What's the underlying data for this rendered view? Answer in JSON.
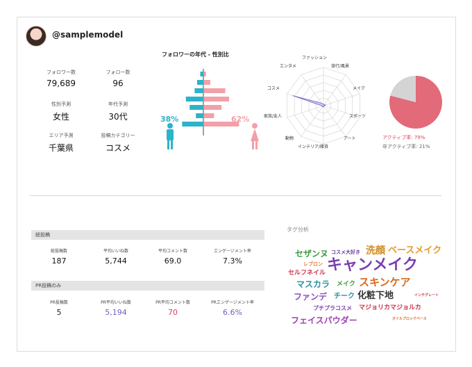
{
  "profile": {
    "username": "@samplemodel"
  },
  "stats": [
    {
      "label": "フォロワー数",
      "value": "79,689"
    },
    {
      "label": "フォロー数",
      "value": "96"
    },
    {
      "label": "性別予測",
      "value": "女性"
    },
    {
      "label": "年代予測",
      "value": "30代"
    },
    {
      "label": "エリア予測",
      "value": "千葉県"
    },
    {
      "label": "投稿カテゴリー",
      "value": "コスメ"
    }
  ],
  "age_gender": {
    "title": "フォロワーの年代 - 性別比",
    "male_pct": "38%",
    "female_pct": "62%",
    "colors": {
      "male": "#2bb3c9",
      "female": "#f2a0a8"
    }
  },
  "radar": {
    "labels": [
      "ファッション",
      "旅行/風景",
      "メイク",
      "スポーツ",
      "アート",
      "インテリア/雑貨",
      "動物",
      "家族/友人",
      "コスメ",
      "エンタメ"
    ]
  },
  "pie": {
    "active_label": "アクティブ率: 79%",
    "inactive_label": "非アクティブ率: 21%",
    "colors": {
      "active": "#e26a79",
      "inactive": "#d4d4d4"
    }
  },
  "chart_data": [
    {
      "type": "bar",
      "title": "フォロワーの年代 - 性別比",
      "series": [
        {
          "name": "男性",
          "values": [
            5,
            10,
            14,
            28,
            22,
            12,
            34
          ]
        },
        {
          "name": "女性",
          "values": [
            3,
            10,
            34,
            40,
            28,
            16,
            56
          ]
        }
      ],
      "legend": [
        "38%",
        "62%"
      ]
    },
    {
      "type": "radar",
      "categories": [
        "ファッション",
        "旅行/風景",
        "メイク",
        "スポーツ",
        "アート",
        "インテリア/雑貨",
        "動物",
        "家族/友人",
        "コスメ",
        "エンタメ"
      ],
      "values": [
        4,
        3,
        6,
        2,
        2,
        3,
        4,
        3,
        85,
        8
      ],
      "max": 100
    },
    {
      "type": "pie",
      "categories": [
        "アクティブ率",
        "非アクティブ率"
      ],
      "values": [
        79,
        21
      ]
    }
  ],
  "all_posts": {
    "header": "総投稿",
    "items": [
      {
        "label": "総投稿数",
        "value": "187"
      },
      {
        "label": "平均いいね数",
        "value": "5,744"
      },
      {
        "label": "平均コメント数",
        "value": "69.0"
      },
      {
        "label": "エンゲージメント率",
        "value": "7.3%"
      }
    ]
  },
  "pr_posts": {
    "header": "PR投稿のみ",
    "items": [
      {
        "label": "PR投稿数",
        "value": "5",
        "color": "#222222"
      },
      {
        "label": "PR平均いいね数",
        "value": "5,194",
        "color": "#6c63c4"
      },
      {
        "label": "PR平均コメント数",
        "value": "70",
        "color": "#d6455e"
      },
      {
        "label": "PRエンゲージメント率",
        "value": "6.6%",
        "color": "#6c63c4"
      }
    ]
  },
  "tags": {
    "title": "タグ分析",
    "words": [
      {
        "text": "セザンヌ",
        "color": "#3a9c3a"
      },
      {
        "text": "コスメ大好き",
        "color": "#6b3fa0"
      },
      {
        "text": "洗顔",
        "color": "#d08a1c"
      },
      {
        "text": "ベースメイク",
        "color": "#e39a2a"
      },
      {
        "text": "レブロン",
        "color": "#e07a3a"
      },
      {
        "text": "キャンメイク",
        "color": "#7a3fb0"
      },
      {
        "text": "セルフネイル",
        "color": "#d0344a"
      },
      {
        "text": "マスカラ",
        "color": "#2a8fa8"
      },
      {
        "text": "メイク",
        "color": "#3a9c3a"
      },
      {
        "text": "スキンケア",
        "color": "#d86a1c"
      },
      {
        "text": "インテグレート",
        "color": "#d0344a"
      },
      {
        "text": "ファンデ",
        "color": "#8a4fc0"
      },
      {
        "text": "チーク",
        "color": "#2a8fa8"
      },
      {
        "text": "化粧下地",
        "color": "#333333"
      },
      {
        "text": "プチプラコスメ",
        "color": "#7a3fb0"
      },
      {
        "text": "マジョリカマジョルカ",
        "color": "#d0344a"
      },
      {
        "text": "フェイスパウダー",
        "color": "#a040b0"
      },
      {
        "text": "オイルブロックベース",
        "color": "#d86a1c"
      }
    ]
  }
}
